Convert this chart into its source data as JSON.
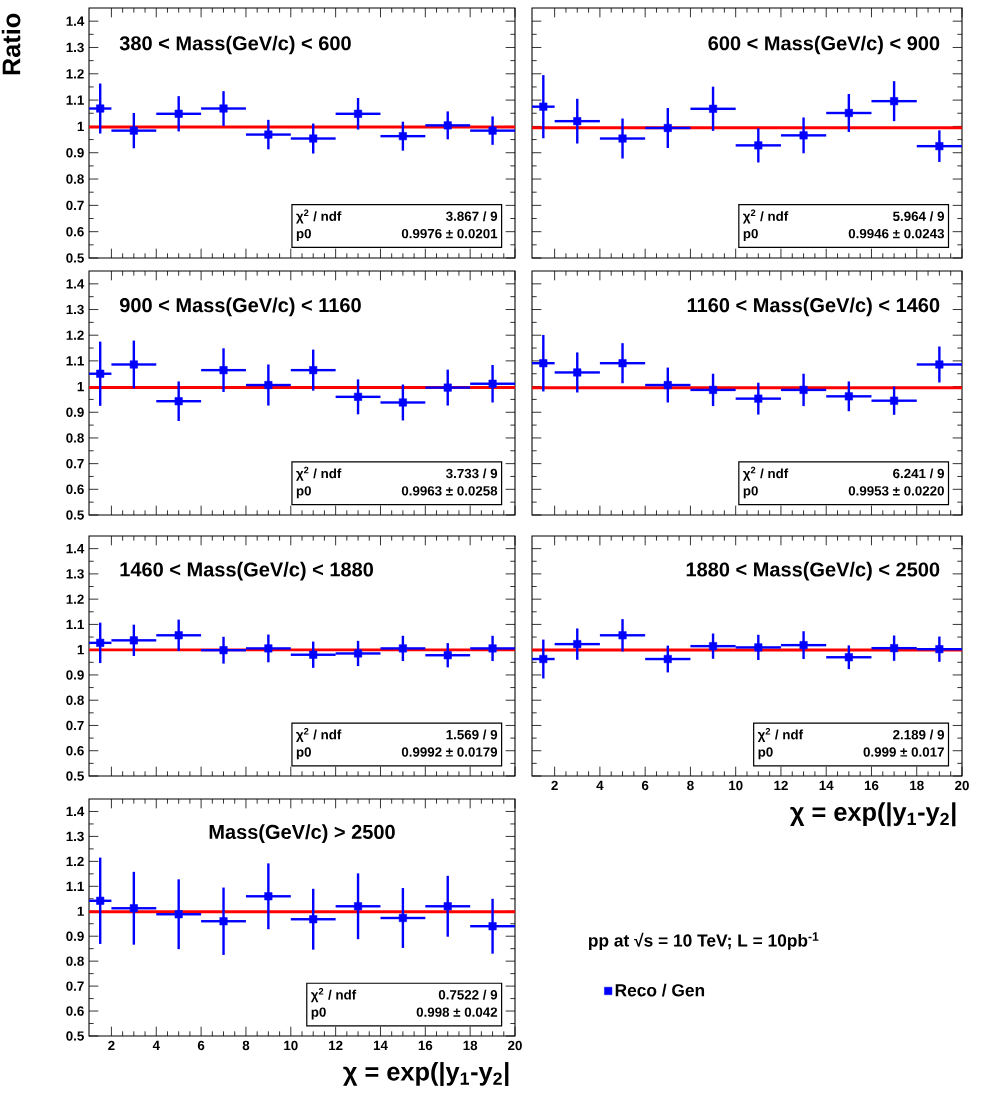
{
  "chart_data": [
    {
      "type": "scatter",
      "title": "380 < Mass(GeV/c) < 600",
      "ylabel": "Ratio",
      "x": [
        1.5,
        3,
        5,
        7,
        9,
        11,
        13,
        15,
        17,
        19
      ],
      "xlim": [
        1,
        20
      ],
      "ylim": [
        0.5,
        1.45
      ],
      "xticks": [
        2,
        4,
        6,
        8,
        10,
        12,
        14,
        16,
        18,
        20
      ],
      "yticks": [
        0.5,
        0.6,
        0.7,
        0.8,
        0.9,
        1,
        1.1,
        1.2,
        1.3,
        1.4
      ],
      "tick_labels": "y",
      "marker": "square",
      "series": [
        {
          "color": "#0000ff",
          "values": [
            1.068,
            0.984,
            1.048,
            1.068,
            0.969,
            0.954,
            1.048,
            0.963,
            1.004,
            0.984
          ],
          "errors": [
            0.095,
            0.067,
            0.067,
            0.066,
            0.056,
            0.057,
            0.06,
            0.055,
            0.053,
            0.054
          ],
          "xerrors": [
            0.5,
            1,
            1,
            1,
            1,
            1,
            1,
            1,
            1,
            1
          ]
        }
      ],
      "ref_lines": [
        {
          "axis": "y",
          "value": 0.9976,
          "color": "#ff0000"
        }
      ],
      "annotations": [
        "χ$^{2}$ / ndf",
        "3.867 / 9",
        "p0",
        "0.9976 ± 0.0201"
      ]
    },
    {
      "type": "scatter",
      "title": "600 < Mass(GeV/c) < 900",
      "x": [
        1.5,
        3,
        5,
        7,
        9,
        11,
        13,
        15,
        17,
        19
      ],
      "xlim": [
        1,
        20
      ],
      "ylim": [
        0.5,
        1.45
      ],
      "xticks": [
        2,
        4,
        6,
        8,
        10,
        12,
        14,
        16,
        18,
        20
      ],
      "yticks": [
        0.5,
        0.6,
        0.7,
        0.8,
        0.9,
        1,
        1.1,
        1.2,
        1.3,
        1.4
      ],
      "tick_labels": false,
      "marker": "square",
      "series": [
        {
          "color": "#0000ff",
          "values": [
            1.075,
            1.02,
            0.954,
            0.994,
            1.067,
            0.928,
            0.966,
            1.051,
            1.096,
            0.925
          ],
          "errors": [
            0.12,
            0.085,
            0.076,
            0.076,
            0.084,
            0.065,
            0.068,
            0.072,
            0.076,
            0.06
          ],
          "xerrors": [
            0.5,
            1,
            1,
            1,
            1,
            1,
            1,
            1,
            1,
            1
          ]
        }
      ],
      "ref_lines": [
        {
          "axis": "y",
          "value": 0.9946,
          "color": "#ff0000"
        }
      ],
      "annotations": [
        "χ$^{2}$ / ndf",
        "5.964 / 9",
        "p0",
        "0.9946 ± 0.0243"
      ]
    },
    {
      "type": "scatter",
      "title": "900 < Mass(GeV/c) < 1160",
      "x": [
        1.5,
        3,
        5,
        7,
        9,
        11,
        13,
        15,
        17,
        19
      ],
      "xlim": [
        1,
        20
      ],
      "ylim": [
        0.5,
        1.45
      ],
      "xticks": [
        2,
        4,
        6,
        8,
        10,
        12,
        14,
        16,
        18,
        20
      ],
      "yticks": [
        0.5,
        0.6,
        0.7,
        0.8,
        0.9,
        1,
        1.1,
        1.2,
        1.3,
        1.4
      ],
      "tick_labels": "y",
      "marker": "square",
      "series": [
        {
          "color": "#0000ff",
          "values": [
            1.05,
            1.086,
            0.943,
            1.064,
            1.006,
            1.064,
            0.96,
            0.938,
            0.996,
            1.011
          ],
          "errors": [
            0.125,
            0.093,
            0.077,
            0.085,
            0.08,
            0.08,
            0.068,
            0.07,
            0.07,
            0.073
          ],
          "xerrors": [
            0.5,
            1,
            1,
            1,
            1,
            1,
            1,
            1,
            1,
            1
          ]
        }
      ],
      "ref_lines": [
        {
          "axis": "y",
          "value": 0.9963,
          "color": "#ff0000"
        }
      ],
      "annotations": [
        "χ$^{2}$ / ndf",
        "3.733 / 9",
        "p0",
        "0.9963 ± 0.0258"
      ]
    },
    {
      "type": "scatter",
      "title": "1160 < Mass(GeV/c) < 1460",
      "x": [
        1.5,
        3,
        5,
        7,
        9,
        11,
        13,
        15,
        17,
        19
      ],
      "xlim": [
        1,
        20
      ],
      "ylim": [
        0.5,
        1.45
      ],
      "xticks": [
        2,
        4,
        6,
        8,
        10,
        12,
        14,
        16,
        18,
        20
      ],
      "yticks": [
        0.5,
        0.6,
        0.7,
        0.8,
        0.9,
        1,
        1.1,
        1.2,
        1.3,
        1.4
      ],
      "tick_labels": false,
      "marker": "square",
      "series": [
        {
          "color": "#0000ff",
          "values": [
            1.091,
            1.055,
            1.091,
            1.006,
            0.987,
            0.953,
            0.987,
            0.962,
            0.945,
            1.086
          ],
          "errors": [
            0.11,
            0.078,
            0.078,
            0.068,
            0.063,
            0.062,
            0.063,
            0.058,
            0.055,
            0.07
          ],
          "xerrors": [
            0.5,
            1,
            1,
            1,
            1,
            1,
            1,
            1,
            1,
            1
          ]
        }
      ],
      "ref_lines": [
        {
          "axis": "y",
          "value": 0.9953,
          "color": "#ff0000"
        }
      ],
      "annotations": [
        "χ$^{2}$ / ndf",
        "6.241 / 9",
        "p0",
        "0.9953 ± 0.0220"
      ]
    },
    {
      "type": "scatter",
      "title": "1460 < Mass(GeV/c) < 1880",
      "x": [
        1.5,
        3,
        5,
        7,
        9,
        11,
        13,
        15,
        17,
        19
      ],
      "xlim": [
        1,
        20
      ],
      "ylim": [
        0.5,
        1.45
      ],
      "xticks": [
        2,
        4,
        6,
        8,
        10,
        12,
        14,
        16,
        18,
        20
      ],
      "yticks": [
        0.5,
        0.6,
        0.7,
        0.8,
        0.9,
        1,
        1.1,
        1.2,
        1.3,
        1.4
      ],
      "tick_labels": "y",
      "marker": "square",
      "series": [
        {
          "color": "#0000ff",
          "values": [
            1.027,
            1.037,
            1.057,
            0.998,
            1.005,
            0.98,
            0.985,
            1.005,
            0.978,
            1.005
          ],
          "errors": [
            0.08,
            0.062,
            0.062,
            0.053,
            0.055,
            0.052,
            0.05,
            0.05,
            0.048,
            0.05
          ],
          "xerrors": [
            0.5,
            1,
            1,
            1,
            1,
            1,
            1,
            1,
            1,
            1
          ]
        }
      ],
      "ref_lines": [
        {
          "axis": "y",
          "value": 0.9992,
          "color": "#ff0000"
        }
      ],
      "annotations": [
        "χ$^{2}$ / ndf",
        "1.569 / 9",
        "p0",
        "0.9992 ± 0.0179"
      ]
    },
    {
      "type": "scatter",
      "title": "1880 < Mass(GeV/c) < 2500",
      "xlabel": "χ = exp(|y$_{1}$-y$_{2}$|",
      "x": [
        1.5,
        3,
        5,
        7,
        9,
        11,
        13,
        15,
        17,
        19
      ],
      "xlim": [
        1,
        20
      ],
      "ylim": [
        0.5,
        1.45
      ],
      "xticks": [
        2,
        4,
        6,
        8,
        10,
        12,
        14,
        16,
        18,
        20
      ],
      "yticks": [
        0.5,
        0.6,
        0.7,
        0.8,
        0.9,
        1,
        1.1,
        1.2,
        1.3,
        1.4
      ],
      "tick_labels": "x",
      "marker": "square",
      "series": [
        {
          "color": "#0000ff",
          "values": [
            0.963,
            1.022,
            1.057,
            0.963,
            1.014,
            1.009,
            1.018,
            0.97,
            1.006,
            1.002
          ],
          "errors": [
            0.077,
            0.062,
            0.064,
            0.053,
            0.05,
            0.05,
            0.055,
            0.047,
            0.05,
            0.05
          ],
          "xerrors": [
            0.5,
            1,
            1,
            1,
            1,
            1,
            1,
            1,
            1,
            1
          ]
        }
      ],
      "ref_lines": [
        {
          "axis": "y",
          "value": 0.999,
          "color": "#ff0000"
        }
      ],
      "annotations": [
        "χ$^{2}$ / ndf",
        "2.189 / 9",
        "p0",
        "0.999 ± 0.017"
      ]
    },
    {
      "type": "scatter",
      "title": "Mass(GeV/c) > 2500",
      "xlabel": "χ = exp(|y$_{1}$-y$_{2}$|",
      "x": [
        1.5,
        3,
        5,
        7,
        9,
        11,
        13,
        15,
        17,
        19
      ],
      "xlim": [
        1,
        20
      ],
      "ylim": [
        0.5,
        1.45
      ],
      "xticks": [
        2,
        4,
        6,
        8,
        10,
        12,
        14,
        16,
        18,
        20
      ],
      "yticks": [
        0.5,
        0.6,
        0.7,
        0.8,
        0.9,
        1,
        1.1,
        1.2,
        1.3,
        1.4
      ],
      "marker": "square",
      "legend": "right",
      "series": [
        {
          "name": "Reco / Gen",
          "color": "#0000ff",
          "values": [
            1.042,
            1.012,
            0.988,
            0.96,
            1.06,
            0.968,
            1.02,
            0.973,
            1.02,
            0.94
          ],
          "errors": [
            0.173,
            0.146,
            0.14,
            0.135,
            0.132,
            0.122,
            0.132,
            0.12,
            0.122,
            0.11
          ],
          "xerrors": [
            0.5,
            1,
            1,
            1,
            1,
            1,
            1,
            1,
            1,
            1
          ]
        }
      ],
      "ref_lines": [
        {
          "axis": "y",
          "value": 0.998,
          "color": "#ff0000"
        }
      ],
      "annotations": [
        "χ$^{2}$ / ndf",
        "0.7522 / 9",
        "p0",
        "0.998 ± 0.042",
        "pp at √s = 10 TeV; L = 10pb$^{-1}$"
      ]
    }
  ]
}
